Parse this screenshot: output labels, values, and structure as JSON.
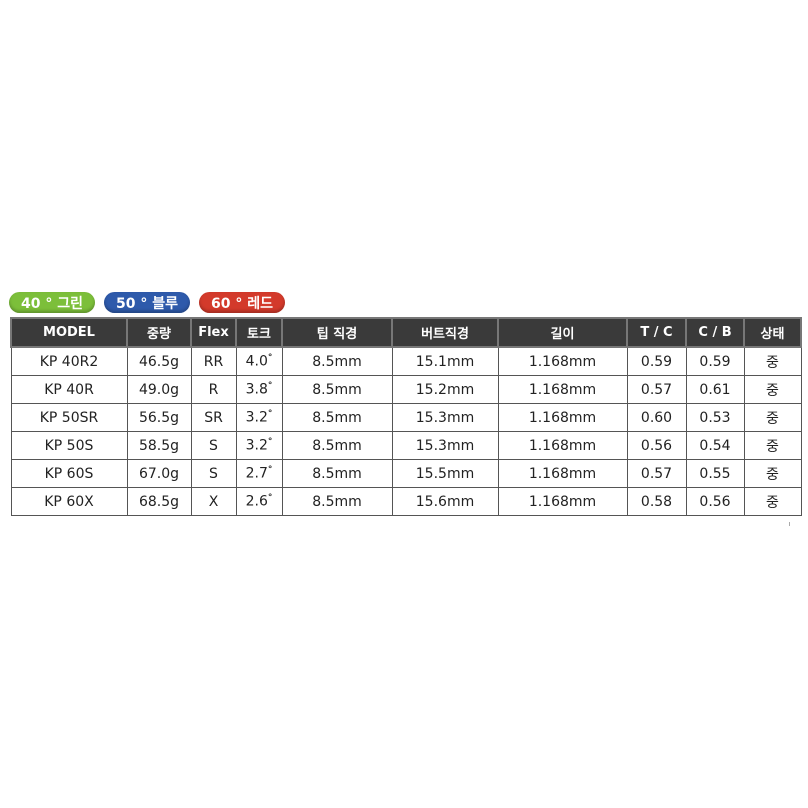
{
  "badges": [
    {
      "label": "40 ° 그린",
      "color": "#7cbf3a"
    },
    {
      "label": "50 ° 블루",
      "color": "#2e5aab"
    },
    {
      "label": "60 ° 레드",
      "color": "#d33a2b"
    }
  ],
  "table": {
    "headers": [
      "MODEL",
      "중량",
      "Flex",
      "토크",
      "팁 직경",
      "버트직경",
      "길이",
      "T / C",
      "C / B",
      "상태"
    ],
    "torque_unit": "°",
    "rows": [
      [
        "KP 40R2",
        "46.5g",
        "RR",
        "4.0",
        "8.5mm",
        "15.1mm",
        "1.168mm",
        "0.59",
        "0.59",
        "중"
      ],
      [
        "KP 40R",
        "49.0g",
        "R",
        "3.8",
        "8.5mm",
        "15.2mm",
        "1.168mm",
        "0.57",
        "0.61",
        "중"
      ],
      [
        "KP 50SR",
        "56.5g",
        "SR",
        "3.2",
        "8.5mm",
        "15.3mm",
        "1.168mm",
        "0.60",
        "0.53",
        "중"
      ],
      [
        "KP 50S",
        "58.5g",
        "S",
        "3.2",
        "8.5mm",
        "15.3mm",
        "1.168mm",
        "0.56",
        "0.54",
        "중"
      ],
      [
        "KP 60S",
        "67.0g",
        "S",
        "2.7",
        "8.5mm",
        "15.5mm",
        "1.168mm",
        "0.57",
        "0.55",
        "중"
      ],
      [
        "KP 60X",
        "68.5g",
        "X",
        "2.6",
        "8.5mm",
        "15.6mm",
        "1.168mm",
        "0.58",
        "0.56",
        "중"
      ]
    ]
  }
}
